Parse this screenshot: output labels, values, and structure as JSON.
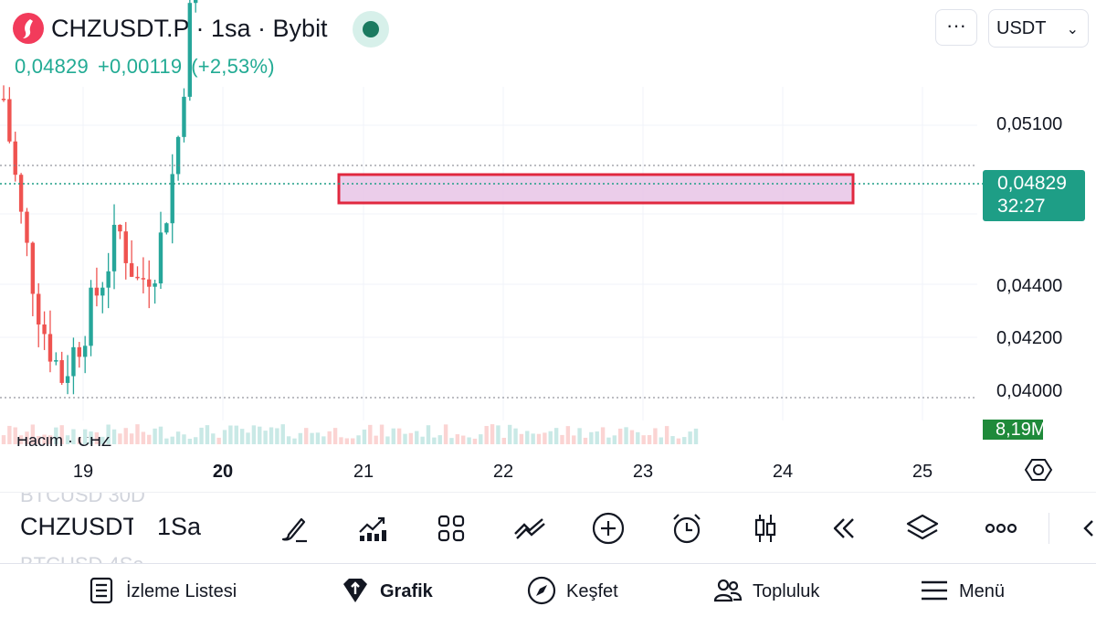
{
  "header": {
    "title": "CHZUSDT.P · 1sa · Bybit",
    "last_price": "0,04829",
    "change": "+0,00119",
    "change_pct": "(+2,53%)",
    "more_label": "···",
    "currency": "USDT"
  },
  "chart": {
    "price_axis": [
      "0,05100",
      "0,04400",
      "0,04200",
      "0,04000"
    ],
    "time_axis": [
      "19",
      "20",
      "21",
      "22",
      "23",
      "24",
      "25"
    ],
    "current_price": "0,04829",
    "countdown": "32:27",
    "volume_value": "8,19M",
    "volume_legend": "Hacim · CHZ",
    "zone_color": "#e8c4e6",
    "zone_border": "#e0283f",
    "up_color": "#26a69a",
    "down_color": "#ef5350"
  },
  "chart_data": {
    "type": "candlestick",
    "x_axis": [
      "19",
      "20",
      "21",
      "22",
      "23",
      "24",
      "25"
    ],
    "y_axis_ticks": [
      "0,05100",
      "0,04400",
      "0,04200",
      "0,04000"
    ],
    "last_price": 0.04829,
    "trend": [
      0.0422,
      0.0412,
      0.0405,
      0.0401,
      0.0404,
      0.0408,
      0.0412,
      0.0408,
      0.041,
      0.0418,
      0.0433,
      0.0442,
      0.0447,
      0.0455,
      0.0469,
      0.0478,
      0.048,
      0.0481,
      0.0478,
      0.0476,
      0.0475,
      0.0474,
      0.048,
      0.0485,
      0.0478,
      0.0477,
      0.0479,
      0.0481,
      0.048,
      0.0479,
      0.0476,
      0.0475,
      0.048,
      0.0478,
      0.0475,
      0.0478,
      0.0483
    ],
    "resistance_zone": [
      0.0481,
      0.049
    ]
  },
  "toolbar": {
    "symbol": "CHZUSDT",
    "timeframe": "1Sa",
    "ghost_top": "BTCUSD   30D",
    "ghost_bottom": "BTCUSD   4Sa"
  },
  "nav": {
    "watchlist": "İzleme Listesi",
    "chart": "Grafik",
    "explore": "Keşfet",
    "community": "Topluluk",
    "menu": "Menü"
  }
}
